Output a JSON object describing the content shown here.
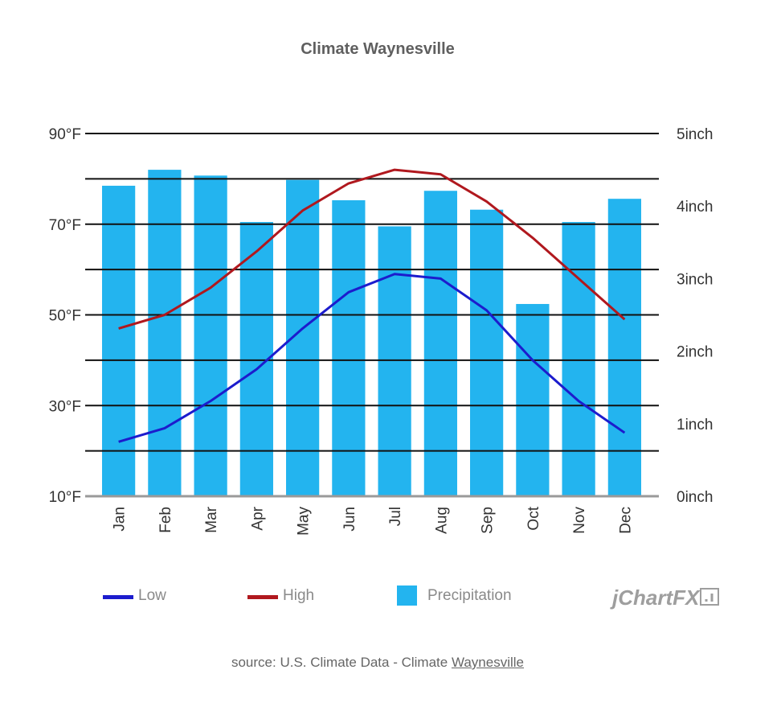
{
  "chart_data": {
    "type": "bar+line",
    "title": "Climate Waynesville",
    "categories": [
      "Jan",
      "Feb",
      "Mar",
      "Apr",
      "May",
      "Jun",
      "Jul",
      "Aug",
      "Sep",
      "Oct",
      "Nov",
      "Dec"
    ],
    "y_left": {
      "unit": "°F",
      "range": [
        10,
        90
      ],
      "tick_labels": [
        "90°F",
        "70°F",
        "50°F",
        "30°F",
        "10°F"
      ]
    },
    "y_right": {
      "unit": "inch",
      "range": [
        0,
        5
      ],
      "tick_labels": [
        "5inch",
        "4inch",
        "3inch",
        "2inch",
        "1inch",
        "0inch"
      ]
    },
    "grid": true,
    "series": [
      {
        "name": "Low",
        "type": "line",
        "axis": "left",
        "color": "#1c1ccd",
        "values": [
          22,
          25,
          31,
          38,
          47,
          55,
          59,
          58,
          51,
          40,
          31,
          24
        ]
      },
      {
        "name": "High",
        "type": "line",
        "axis": "left",
        "color": "#b0181e",
        "values": [
          47,
          50,
          56,
          64,
          73,
          79,
          82,
          81,
          75,
          67,
          58,
          49
        ]
      },
      {
        "name": "Precipitation",
        "type": "bar",
        "axis": "right",
        "color": "#23b4ef",
        "values": [
          4.28,
          4.5,
          4.42,
          3.78,
          4.36,
          4.08,
          3.72,
          4.21,
          3.95,
          2.65,
          3.78,
          4.1
        ]
      }
    ],
    "legend_position": "bottom"
  },
  "brand": "jChartFX",
  "source": {
    "prefix": "source: U.S. Climate Data - Climate ",
    "link": "Waynesville"
  }
}
